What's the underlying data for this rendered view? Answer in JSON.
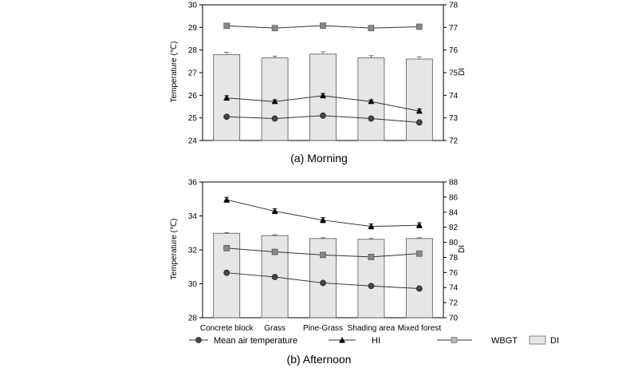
{
  "chart_data": [
    {
      "type": "bar+line",
      "panel": "morning",
      "caption": "(a)  Morning",
      "categories": [
        "Concrete block",
        "Grass",
        "Pine-Grass",
        "Shading area",
        "Mixed forest"
      ],
      "show_category_labels": false,
      "left_axis": {
        "label": "Temperature (℃)",
        "ylim": [
          24,
          30
        ],
        "ticks": [
          24,
          25,
          26,
          27,
          28,
          29,
          30
        ]
      },
      "right_axis": {
        "label": "DI",
        "ylim": [
          72,
          78
        ],
        "ticks": [
          72,
          73,
          74,
          75,
          76,
          77,
          78
        ]
      },
      "bars": {
        "name": "DI",
        "axis": "right",
        "values": [
          75.8,
          75.65,
          75.82,
          75.65,
          75.6
        ],
        "errors": [
          0.1,
          0.08,
          0.1,
          0.1,
          0.1
        ]
      },
      "series": [
        {
          "name": "Mean air temperature",
          "marker": "circle",
          "axis": "left",
          "values": [
            25.05,
            24.97,
            25.1,
            24.97,
            24.8
          ],
          "errors": [
            0.04,
            0.03,
            0.04,
            0.03,
            0.04
          ]
        },
        {
          "name": "HI",
          "marker": "triangle",
          "axis": "left",
          "values": [
            25.88,
            25.72,
            25.98,
            25.72,
            25.3
          ],
          "errors": [
            0.1,
            0.08,
            0.1,
            0.08,
            0.1
          ]
        },
        {
          "name": "WBGT",
          "marker": "square",
          "axis": "left",
          "values": [
            29.07,
            28.97,
            29.08,
            28.97,
            29.03
          ],
          "errors": [
            0,
            0,
            0,
            0,
            0
          ]
        }
      ]
    },
    {
      "type": "bar+line",
      "panel": "afternoon",
      "caption": "(b)  Afternoon",
      "categories": [
        "Concrete block",
        "Grass",
        "Pine-Grass",
        "Shading area",
        "Mixed forest"
      ],
      "show_category_labels": true,
      "left_axis": {
        "label": "Temperature (℃)",
        "ylim": [
          28,
          36
        ],
        "ticks": [
          28,
          30,
          32,
          34,
          36
        ]
      },
      "right_axis": {
        "label": "DI",
        "ylim": [
          70,
          88
        ],
        "ticks": [
          70,
          72,
          74,
          76,
          78,
          80,
          82,
          84,
          86,
          88
        ]
      },
      "bars": {
        "name": "DI",
        "axis": "right",
        "values": [
          81.2,
          80.9,
          80.5,
          80.4,
          80.5
        ],
        "errors": [
          0.1,
          0.1,
          0.1,
          0.1,
          0.1
        ]
      },
      "series": [
        {
          "name": "Mean air temperature",
          "marker": "circle",
          "axis": "left",
          "values": [
            30.65,
            30.4,
            30.05,
            29.87,
            29.72
          ],
          "errors": [
            0.06,
            0.05,
            0.05,
            0.05,
            0.05
          ]
        },
        {
          "name": "HI",
          "marker": "triangle",
          "axis": "left",
          "values": [
            34.95,
            34.28,
            33.75,
            33.38,
            33.45
          ],
          "errors": [
            0.15,
            0.15,
            0.15,
            0.15,
            0.15
          ]
        },
        {
          "name": "WBGT",
          "marker": "square",
          "axis": "left",
          "values": [
            32.1,
            31.88,
            31.7,
            31.58,
            31.78
          ],
          "errors": [
            0.05,
            0.05,
            0.05,
            0.05,
            0.05
          ]
        }
      ]
    }
  ],
  "legend": [
    {
      "name": "Mean air temperature",
      "marker": "circle"
    },
    {
      "name": "HI",
      "marker": "triangle"
    },
    {
      "name": "WBGT",
      "marker": "square"
    },
    {
      "name": "DI",
      "marker": "bar"
    }
  ],
  "colors": {
    "bar_fill": "#e6e6e6",
    "bar_stroke": "#555555",
    "circle": "#444444",
    "triangle": "#000000",
    "square": "#888888",
    "line": "#333333",
    "axis": "#000000"
  }
}
